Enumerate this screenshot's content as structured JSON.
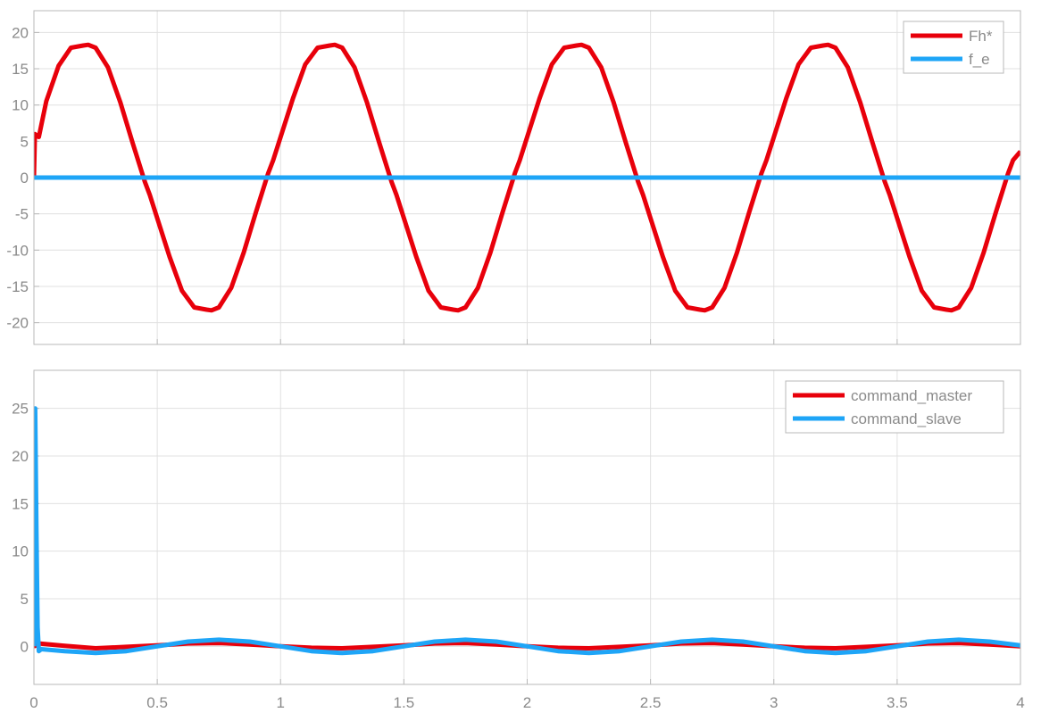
{
  "colors": {
    "red": "#e8000b",
    "blue": "#1ea5f7",
    "grid": "#e0e0e0",
    "axis": "#b8b8b8",
    "text": "#8a8a8a"
  },
  "chart_data": [
    {
      "type": "line",
      "xlim": [
        0,
        4
      ],
      "ylim": [
        -23,
        23
      ],
      "grid": true,
      "legend_placement": "top-right",
      "x_ticks": [
        "",
        "",
        "",
        "",
        "",
        "",
        "",
        "",
        ""
      ],
      "y_ticks": [
        "20",
        "15",
        "10",
        "5",
        "0",
        "-5",
        "-10",
        "-15",
        "-20"
      ],
      "y_tick_values": [
        20,
        15,
        10,
        5,
        0,
        -5,
        -10,
        -15,
        -20
      ],
      "series": [
        {
          "name": "Fh*",
          "color": "#e8000b",
          "x": [
            0,
            0.004,
            0.02,
            0.05,
            0.1,
            0.15,
            0.2,
            0.22,
            0.25,
            0.3,
            0.35,
            0.4,
            0.45,
            0.47,
            0.5,
            0.55,
            0.6,
            0.65,
            0.7,
            0.72,
            0.75,
            0.8,
            0.85,
            0.9,
            0.95,
            0.97,
            1.0,
            1.05,
            1.1,
            1.15,
            1.2,
            1.22,
            1.25,
            1.3,
            1.35,
            1.4,
            1.45,
            1.47,
            1.5,
            1.55,
            1.6,
            1.65,
            1.7,
            1.72,
            1.75,
            1.8,
            1.85,
            1.9,
            1.95,
            1.97,
            2.0,
            2.05,
            2.1,
            2.15,
            2.2,
            2.22,
            2.25,
            2.3,
            2.35,
            2.4,
            2.45,
            2.47,
            2.5,
            2.55,
            2.6,
            2.65,
            2.7,
            2.72,
            2.75,
            2.8,
            2.85,
            2.9,
            2.95,
            2.97,
            3.0,
            3.05,
            3.1,
            3.15,
            3.2,
            3.22,
            3.25,
            3.3,
            3.35,
            3.4,
            3.45,
            3.47,
            3.5,
            3.55,
            3.6,
            3.65,
            3.7,
            3.72,
            3.75,
            3.8,
            3.85,
            3.9,
            3.95,
            3.97,
            4.0
          ],
          "y": [
            0,
            6,
            5.6,
            10.5,
            15.4,
            17.9,
            18.2,
            18.3,
            17.9,
            15.2,
            10.4,
            4.8,
            -0.6,
            -2.4,
            -5.6,
            -10.9,
            -15.6,
            -17.9,
            -18.2,
            -18.3,
            -17.9,
            -15.2,
            -10.4,
            -4.8,
            0.6,
            2.4,
            5.6,
            10.9,
            15.6,
            17.9,
            18.2,
            18.3,
            17.9,
            15.2,
            10.4,
            4.8,
            -0.6,
            -2.4,
            -5.6,
            -10.9,
            -15.6,
            -17.9,
            -18.2,
            -18.3,
            -17.9,
            -15.2,
            -10.4,
            -4.8,
            0.6,
            2.4,
            5.6,
            10.9,
            15.6,
            17.9,
            18.2,
            18.3,
            17.9,
            15.2,
            10.4,
            4.8,
            -0.6,
            -2.4,
            -5.6,
            -10.9,
            -15.6,
            -17.9,
            -18.2,
            -18.3,
            -17.9,
            -15.2,
            -10.4,
            -4.8,
            0.6,
            2.4,
            5.6,
            10.9,
            15.6,
            17.9,
            18.2,
            18.3,
            17.9,
            15.2,
            10.4,
            4.8,
            -0.6,
            -2.4,
            -5.6,
            -10.9,
            -15.6,
            -17.9,
            -18.2,
            -18.3,
            -17.9,
            -15.2,
            -10.4,
            -4.8,
            0.6,
            2.4,
            3.6
          ]
        },
        {
          "name": "f_e",
          "color": "#1ea5f7",
          "x": [
            0,
            4
          ],
          "y": [
            0,
            0
          ]
        }
      ]
    },
    {
      "type": "line",
      "xlim": [
        0,
        4
      ],
      "ylim": [
        -4,
        29
      ],
      "grid": true,
      "legend_placement": "top-right",
      "x_ticks": [
        "0",
        "0.5",
        "1",
        "1.5",
        "2",
        "2.5",
        "3",
        "3.5",
        "4"
      ],
      "y_ticks": [
        "25",
        "20",
        "15",
        "10",
        "5",
        "0"
      ],
      "y_tick_values": [
        25,
        20,
        15,
        10,
        5,
        0
      ],
      "series": [
        {
          "name": "command_master",
          "color": "#e8000b",
          "x": [
            0,
            0.01,
            0.02,
            0.125,
            0.25,
            0.375,
            0.5,
            0.625,
            0.75,
            0.875,
            1.0,
            1.125,
            1.25,
            1.375,
            1.5,
            1.625,
            1.75,
            1.875,
            2.0,
            2.125,
            2.25,
            2.375,
            2.5,
            2.625,
            2.75,
            2.875,
            3.0,
            3.125,
            3.25,
            3.375,
            3.5,
            3.625,
            3.75,
            3.875,
            4.0
          ],
          "y": [
            0,
            0.1,
            0.3,
            0.05,
            -0.2,
            -0.05,
            0.1,
            0.3,
            0.35,
            0.2,
            0.0,
            -0.15,
            -0.2,
            -0.05,
            0.1,
            0.3,
            0.35,
            0.2,
            0.0,
            -0.15,
            -0.2,
            -0.05,
            0.1,
            0.3,
            0.35,
            0.2,
            0.0,
            -0.15,
            -0.2,
            -0.05,
            0.1,
            0.3,
            0.35,
            0.2,
            0.0
          ]
        },
        {
          "name": "command_slave",
          "color": "#1ea5f7",
          "x": [
            0,
            0.005,
            0.01,
            0.015,
            0.02,
            0.03,
            0.125,
            0.25,
            0.375,
            0.5,
            0.625,
            0.75,
            0.875,
            1.0,
            1.125,
            1.25,
            1.375,
            1.5,
            1.625,
            1.75,
            1.875,
            2.0,
            2.125,
            2.25,
            2.375,
            2.5,
            2.625,
            2.75,
            2.875,
            3.0,
            3.125,
            3.25,
            3.375,
            3.5,
            3.625,
            3.75,
            3.875,
            4.0
          ],
          "y": [
            0,
            25,
            12,
            2,
            -0.5,
            -0.3,
            -0.5,
            -0.7,
            -0.5,
            0.0,
            0.5,
            0.7,
            0.5,
            0.0,
            -0.5,
            -0.7,
            -0.5,
            0.0,
            0.5,
            0.7,
            0.5,
            0.0,
            -0.5,
            -0.7,
            -0.5,
            0.0,
            0.5,
            0.7,
            0.5,
            0.0,
            -0.5,
            -0.7,
            -0.5,
            0.0,
            0.5,
            0.7,
            0.5,
            0.1
          ]
        }
      ]
    }
  ]
}
